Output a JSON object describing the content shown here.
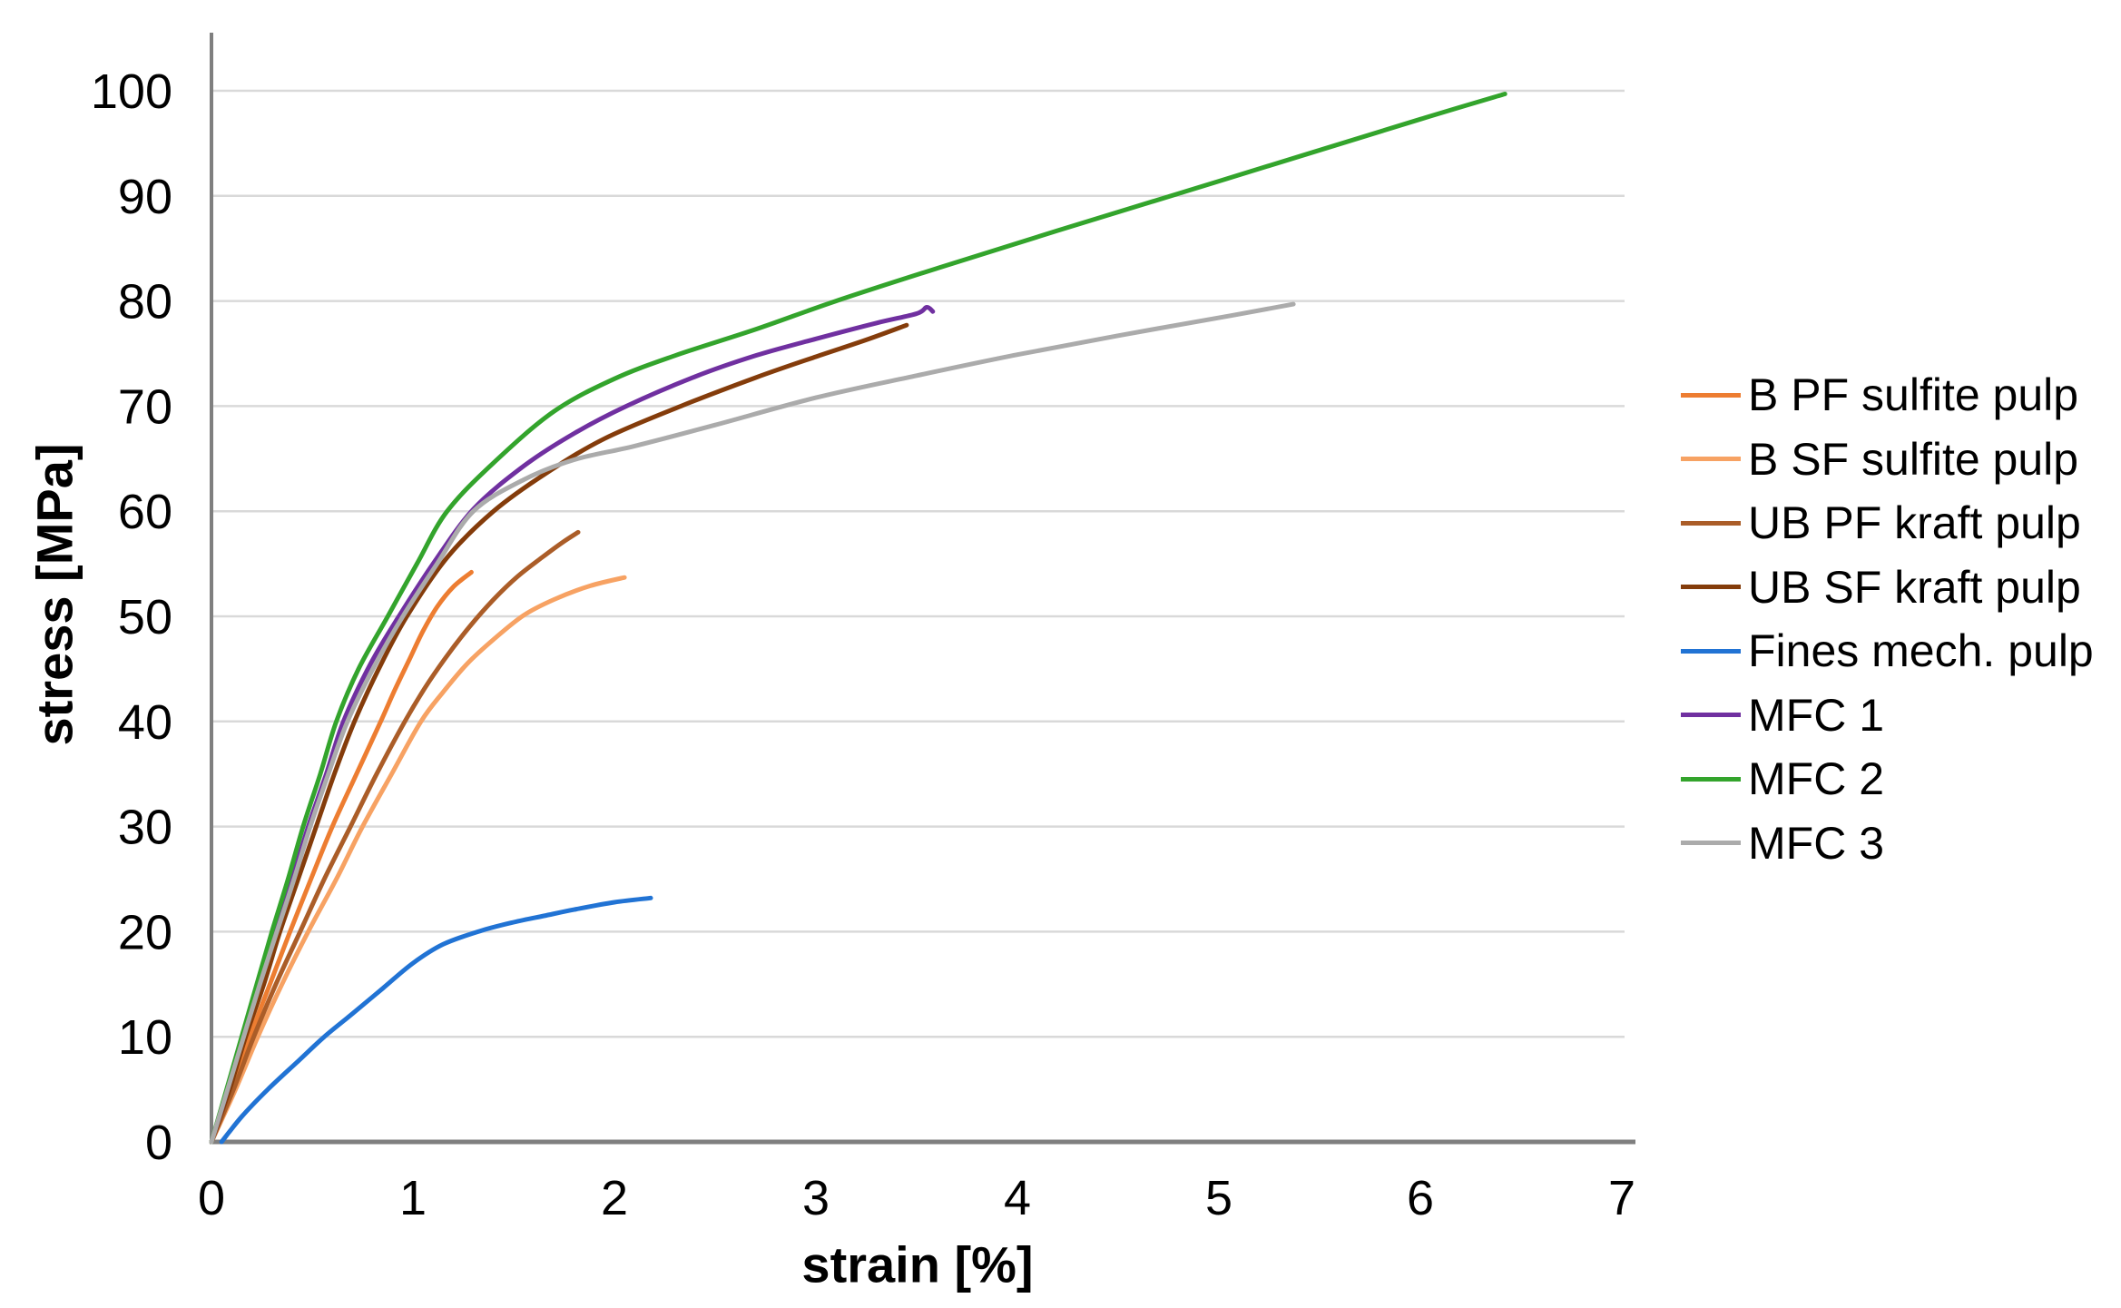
{
  "chart_data": {
    "type": "line",
    "title": "",
    "xlabel": "strain [%]",
    "ylabel": "stress [MPa]",
    "xlim": [
      0,
      7
    ],
    "ylim": [
      0,
      100
    ],
    "xticks": [
      0,
      1,
      2,
      3,
      4,
      5,
      6,
      7
    ],
    "yticks": [
      0,
      10,
      20,
      30,
      40,
      50,
      60,
      70,
      80,
      90,
      100
    ],
    "grid": "horizontal-only",
    "legend_position": "right",
    "background": "#FFFFFF",
    "axis_color": "#7F7F7F",
    "gridline_color": "#D9D9D9",
    "text_color": "#000000",
    "series": [
      {
        "name": "B PF sulfite pulp",
        "color": "#ED7D31",
        "points": [
          [
            0,
            0
          ],
          [
            0.1,
            5
          ],
          [
            0.19,
            10
          ],
          [
            0.29,
            15
          ],
          [
            0.39,
            20
          ],
          [
            0.5,
            25.3
          ],
          [
            0.6,
            30
          ],
          [
            0.72,
            35
          ],
          [
            0.84,
            40
          ],
          [
            0.91,
            43
          ],
          [
            0.98,
            45.8
          ],
          [
            1.05,
            48.6
          ],
          [
            1.12,
            50.9
          ],
          [
            1.2,
            52.8
          ],
          [
            1.29,
            54.2
          ]
        ]
      },
      {
        "name": "B SF sulfite pulp",
        "color": "#F7A263",
        "points": [
          [
            0,
            0
          ],
          [
            0.12,
            5
          ],
          [
            0.23,
            10
          ],
          [
            0.35,
            15
          ],
          [
            0.48,
            20
          ],
          [
            0.62,
            25
          ],
          [
            0.75,
            30
          ],
          [
            0.9,
            35.2
          ],
          [
            1.04,
            40
          ],
          [
            1.15,
            42.8
          ],
          [
            1.27,
            45.5
          ],
          [
            1.4,
            47.8
          ],
          [
            1.55,
            50.1
          ],
          [
            1.7,
            51.6
          ],
          [
            1.88,
            52.9
          ],
          [
            2.05,
            53.7
          ]
        ]
      },
      {
        "name": "UB PF kraft pulp",
        "color": "#AB5D28",
        "points": [
          [
            0,
            0
          ],
          [
            0.11,
            5
          ],
          [
            0.21,
            10
          ],
          [
            0.32,
            15
          ],
          [
            0.44,
            20
          ],
          [
            0.56,
            25
          ],
          [
            0.69,
            30
          ],
          [
            0.82,
            35
          ],
          [
            0.96,
            40
          ],
          [
            1.06,
            43.2
          ],
          [
            1.16,
            46
          ],
          [
            1.28,
            49
          ],
          [
            1.4,
            51.6
          ],
          [
            1.52,
            53.8
          ],
          [
            1.64,
            55.6
          ],
          [
            1.74,
            57
          ],
          [
            1.82,
            58
          ]
        ]
      },
      {
        "name": "UB SF kraft pulp",
        "color": "#843C0B",
        "points": [
          [
            0,
            0
          ],
          [
            0.09,
            5
          ],
          [
            0.17,
            10
          ],
          [
            0.26,
            15
          ],
          [
            0.34,
            20
          ],
          [
            0.43,
            25
          ],
          [
            0.52,
            30
          ],
          [
            0.61,
            35
          ],
          [
            0.71,
            40
          ],
          [
            0.83,
            45
          ],
          [
            0.97,
            50
          ],
          [
            1.17,
            55.6
          ],
          [
            1.4,
            60
          ],
          [
            1.66,
            63.6
          ],
          [
            1.95,
            66.9
          ],
          [
            2.33,
            70
          ],
          [
            2.7,
            72.7
          ],
          [
            3.0,
            74.7
          ],
          [
            3.25,
            76.3
          ],
          [
            3.45,
            77.7
          ]
        ]
      },
      {
        "name": "Fines mech. pulp",
        "color": "#2173D4",
        "points": [
          [
            0.05,
            0
          ],
          [
            0.15,
            2.4
          ],
          [
            0.28,
            5
          ],
          [
            0.42,
            7.5
          ],
          [
            0.56,
            10
          ],
          [
            0.7,
            12.2
          ],
          [
            0.85,
            14.6
          ],
          [
            1.0,
            17.0
          ],
          [
            1.15,
            18.8
          ],
          [
            1.34,
            20.1
          ],
          [
            1.5,
            20.9
          ],
          [
            1.65,
            21.5
          ],
          [
            1.8,
            22.1
          ],
          [
            2.0,
            22.8
          ],
          [
            2.18,
            23.2
          ]
        ]
      },
      {
        "name": "MFC 1",
        "color": "#7030A0",
        "points": [
          [
            0,
            0
          ],
          [
            0.08,
            5
          ],
          [
            0.155,
            10
          ],
          [
            0.235,
            15
          ],
          [
            0.315,
            20
          ],
          [
            0.4,
            25
          ],
          [
            0.48,
            30
          ],
          [
            0.57,
            35
          ],
          [
            0.655,
            40
          ],
          [
            0.79,
            45.5
          ],
          [
            0.93,
            50
          ],
          [
            1.1,
            55
          ],
          [
            1.3,
            60.2
          ],
          [
            1.55,
            64.3
          ],
          [
            1.8,
            67.4
          ],
          [
            2.06,
            70
          ],
          [
            2.4,
            72.8
          ],
          [
            2.7,
            74.8
          ],
          [
            3.0,
            76.4
          ],
          [
            3.3,
            77.9
          ],
          [
            3.5,
            78.8
          ],
          [
            3.55,
            79.4
          ],
          [
            3.58,
            79.0
          ]
        ]
      },
      {
        "name": "MFC 2",
        "color": "#33A42C",
        "points": [
          [
            0,
            0
          ],
          [
            0.075,
            5
          ],
          [
            0.15,
            10
          ],
          [
            0.225,
            15
          ],
          [
            0.3,
            20
          ],
          [
            0.38,
            25
          ],
          [
            0.455,
            30
          ],
          [
            0.54,
            35
          ],
          [
            0.62,
            40
          ],
          [
            0.73,
            45
          ],
          [
            0.875,
            50
          ],
          [
            1.02,
            55
          ],
          [
            1.17,
            60
          ],
          [
            1.4,
            64.6
          ],
          [
            1.7,
            69.5
          ],
          [
            2.0,
            72.6
          ],
          [
            2.3,
            74.8
          ],
          [
            2.7,
            77.3
          ],
          [
            3.1,
            80
          ],
          [
            3.6,
            83.1
          ],
          [
            4.2,
            86.7
          ],
          [
            5.0,
            91.4
          ],
          [
            6.0,
            97.3
          ],
          [
            6.42,
            99.7
          ]
        ]
      },
      {
        "name": "MFC 3",
        "color": "#ABABAB",
        "points": [
          [
            0,
            0
          ],
          [
            0.08,
            5
          ],
          [
            0.16,
            10
          ],
          [
            0.24,
            15
          ],
          [
            0.325,
            20
          ],
          [
            0.41,
            25
          ],
          [
            0.49,
            30
          ],
          [
            0.58,
            35
          ],
          [
            0.675,
            40
          ],
          [
            0.81,
            45.3
          ],
          [
            0.95,
            50
          ],
          [
            1.12,
            55
          ],
          [
            1.3,
            60
          ],
          [
            1.55,
            63
          ],
          [
            1.8,
            64.9
          ],
          [
            2.1,
            66.2
          ],
          [
            2.5,
            68.2
          ],
          [
            3.0,
            70.8
          ],
          [
            3.5,
            72.9
          ],
          [
            4.0,
            74.9
          ],
          [
            4.5,
            76.7
          ],
          [
            5.0,
            78.4
          ],
          [
            5.37,
            79.7
          ]
        ]
      }
    ]
  }
}
